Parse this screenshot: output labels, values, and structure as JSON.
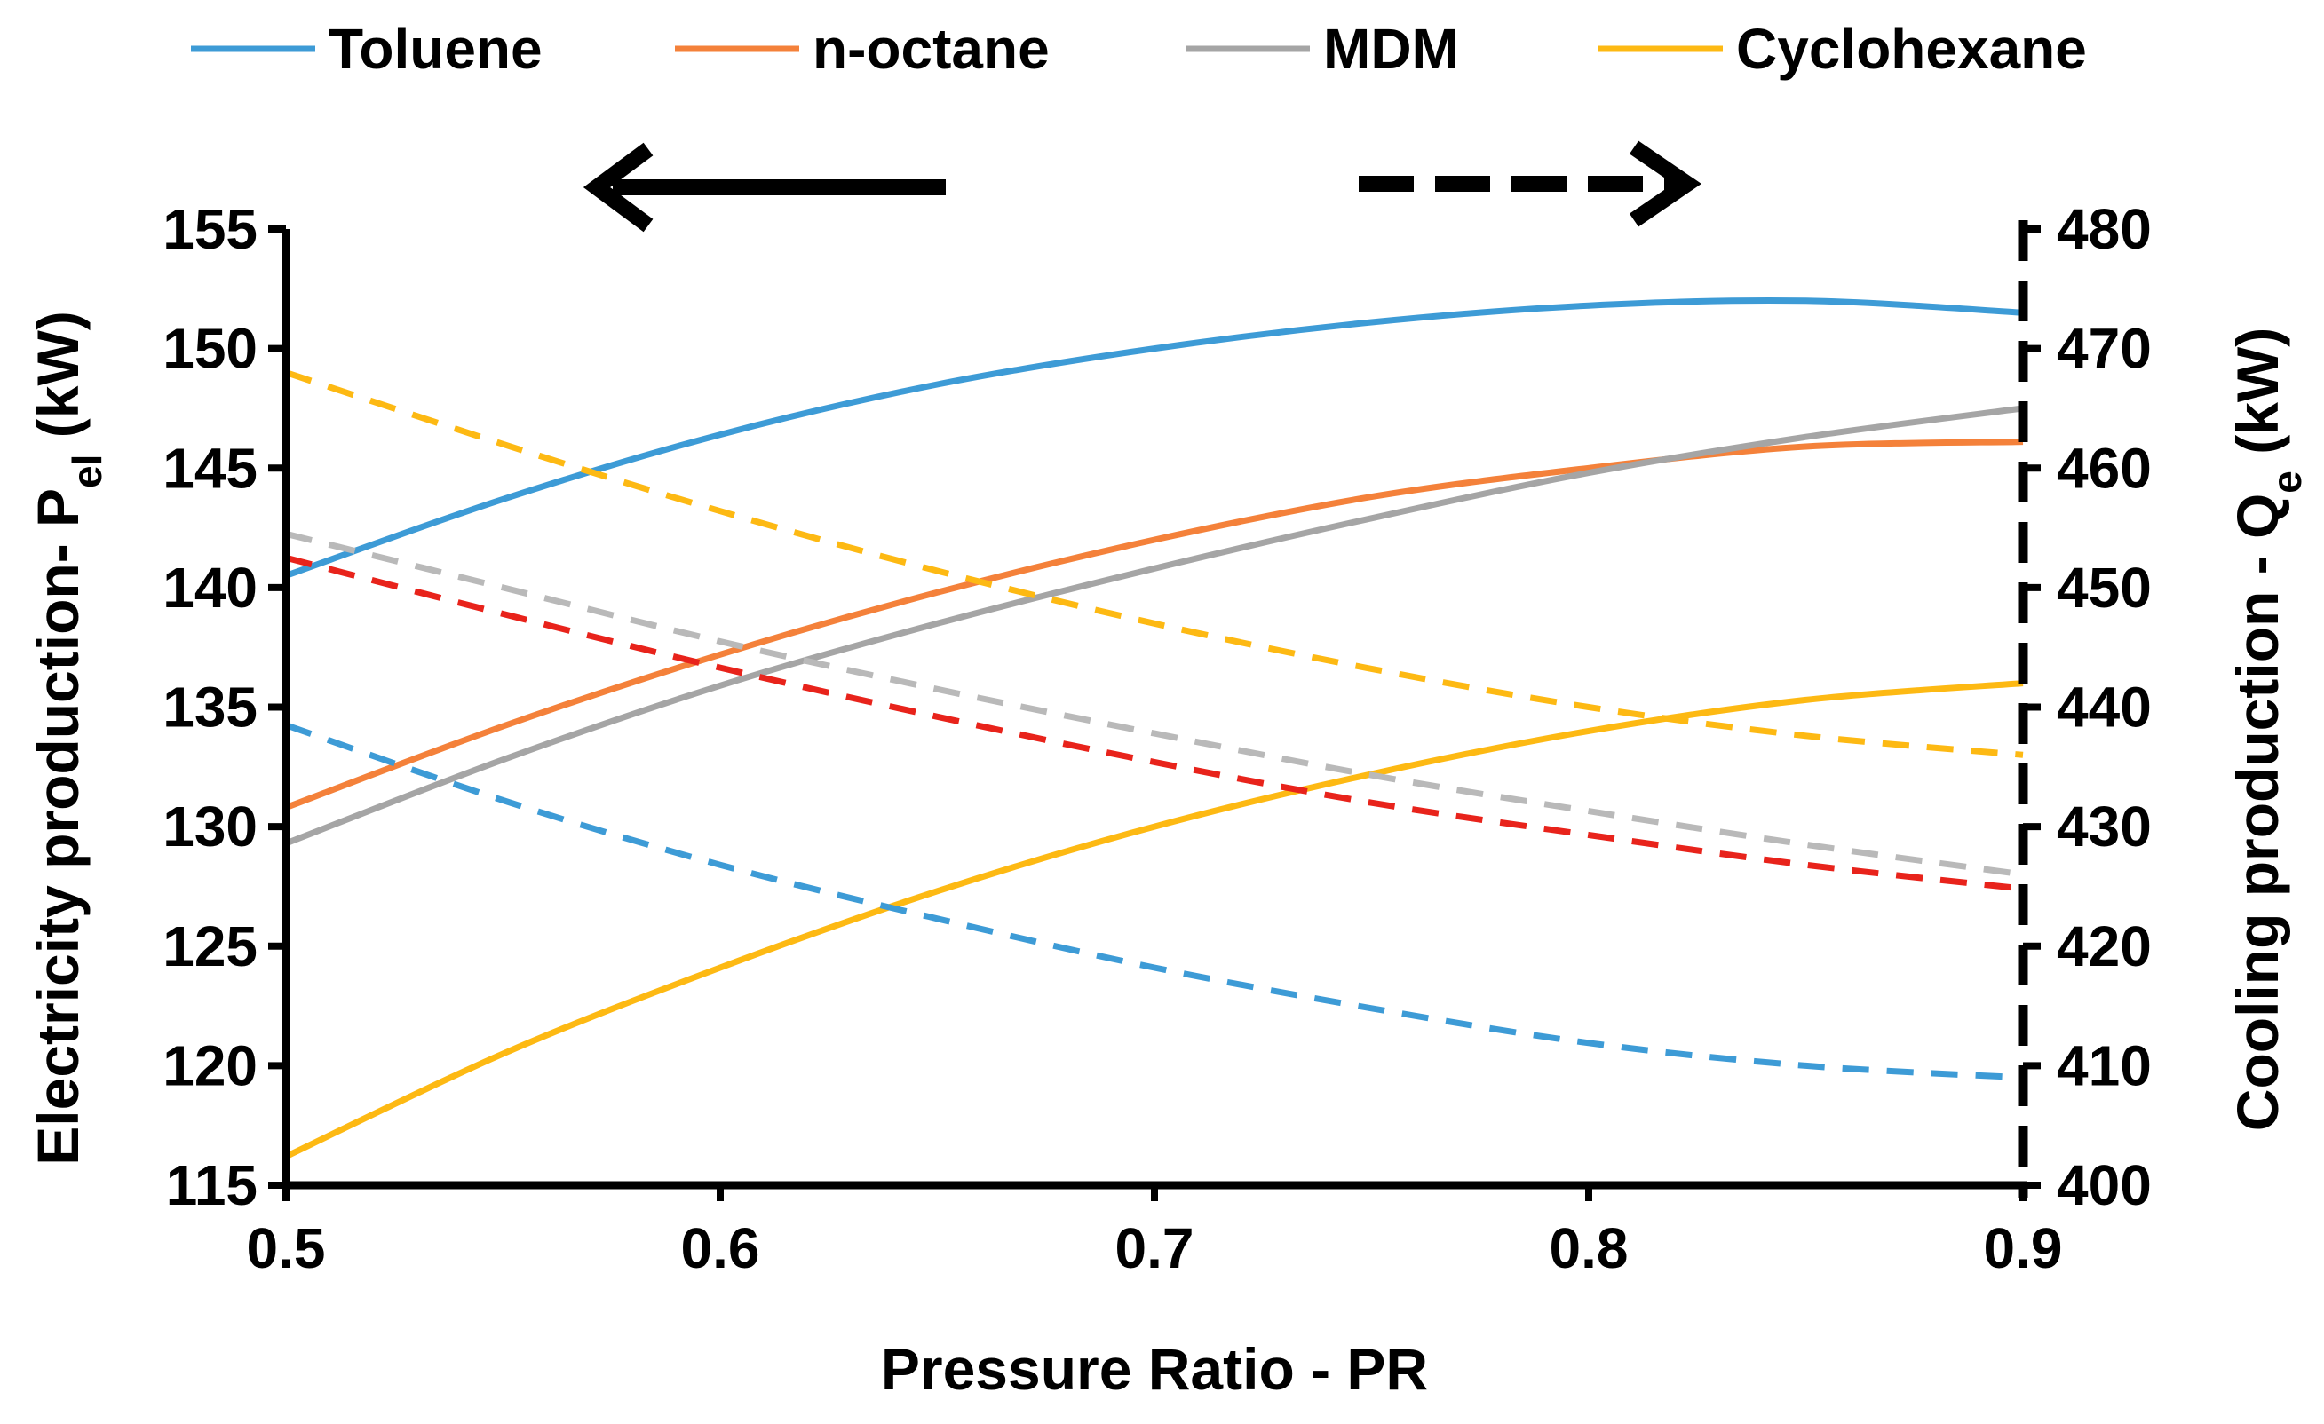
{
  "chart_data": {
    "type": "line",
    "title": "",
    "xlabel": "Pressure Ratio - PR",
    "ylabel_left": {
      "text": "Electricity production- P",
      "sub": "el",
      "suffix": " (kW)"
    },
    "ylabel_right": {
      "text": "Cooling production - Q",
      "sub": "e",
      "suffix": "  (kW)"
    },
    "xlim": [
      0.5,
      0.9
    ],
    "ylim_left": [
      115,
      155
    ],
    "ylim_right": [
      400,
      480
    ],
    "x_ticks": [
      "0.5",
      "0.6",
      "0.7",
      "0.8",
      "0.9"
    ],
    "y_ticks_left": [
      "115",
      "120",
      "125",
      "130",
      "135",
      "140",
      "145",
      "150",
      "155"
    ],
    "y_ticks_right": [
      "400",
      "410",
      "420",
      "430",
      "440",
      "450",
      "460",
      "470",
      "480"
    ],
    "grid": false,
    "legend_position": "top",
    "legend": [
      {
        "name": "Toluene",
        "color": "#3d9bd6"
      },
      {
        "name": "n-octane",
        "color": "#f4813a"
      },
      {
        "name": "MDM",
        "color": "#a5a5a5"
      },
      {
        "name": "Cyclohexane",
        "color": "#fdb913"
      }
    ],
    "direction_arrows": [
      {
        "style": "solid",
        "direction": "left",
        "meaning": "left axis (electricity)"
      },
      {
        "style": "dashed",
        "direction": "right",
        "meaning": "right axis (cooling)"
      }
    ],
    "x": [
      0.5,
      0.55,
      0.6,
      0.65,
      0.7,
      0.75,
      0.8,
      0.85,
      0.9
    ],
    "series_electricity": [
      {
        "name": "Toluene",
        "axis": "left",
        "color": "#3d9bd6",
        "values": [
          140.5,
          143.7,
          146.4,
          148.5,
          150.0,
          151.1,
          151.8,
          152.0,
          151.5
        ]
      },
      {
        "name": "n-octane",
        "axis": "left",
        "color": "#f4813a",
        "values": [
          130.8,
          134.2,
          137.2,
          139.8,
          142.0,
          143.8,
          145.0,
          145.9,
          146.1
        ]
      },
      {
        "name": "MDM",
        "axis": "left",
        "color": "#a5a5a5",
        "values": [
          129.3,
          132.8,
          135.9,
          138.5,
          140.8,
          142.9,
          144.8,
          146.3,
          147.5
        ]
      },
      {
        "name": "Cyclohexane",
        "axis": "left",
        "color": "#fdb913",
        "values": [
          116.2,
          120.5,
          124.1,
          127.3,
          130.0,
          132.2,
          134.0,
          135.3,
          136.0
        ]
      }
    ],
    "series_cooling": [
      {
        "name": "Toluene",
        "axis": "right",
        "color": "#3d9bd6",
        "values": [
          438.5,
          432.2,
          426.8,
          422.3,
          418.2,
          414.8,
          411.9,
          410.0,
          409.0
        ]
      },
      {
        "name": "n-octane",
        "axis": "right",
        "color": "#e8231b",
        "values": [
          452.5,
          447.8,
          443.3,
          439.2,
          435.4,
          432.0,
          429.3,
          426.8,
          424.8
        ]
      },
      {
        "name": "MDM",
        "axis": "right",
        "color": "#b9b9b9",
        "values": [
          454.5,
          450.0,
          445.5,
          441.5,
          437.8,
          434.3,
          431.3,
          428.5,
          426.0
        ]
      },
      {
        "name": "Cyclohexane",
        "axis": "right",
        "color": "#fdb913",
        "values": [
          468.0,
          462.0,
          456.4,
          451.4,
          447.0,
          443.2,
          440.0,
          437.6,
          436.0
        ]
      }
    ]
  }
}
